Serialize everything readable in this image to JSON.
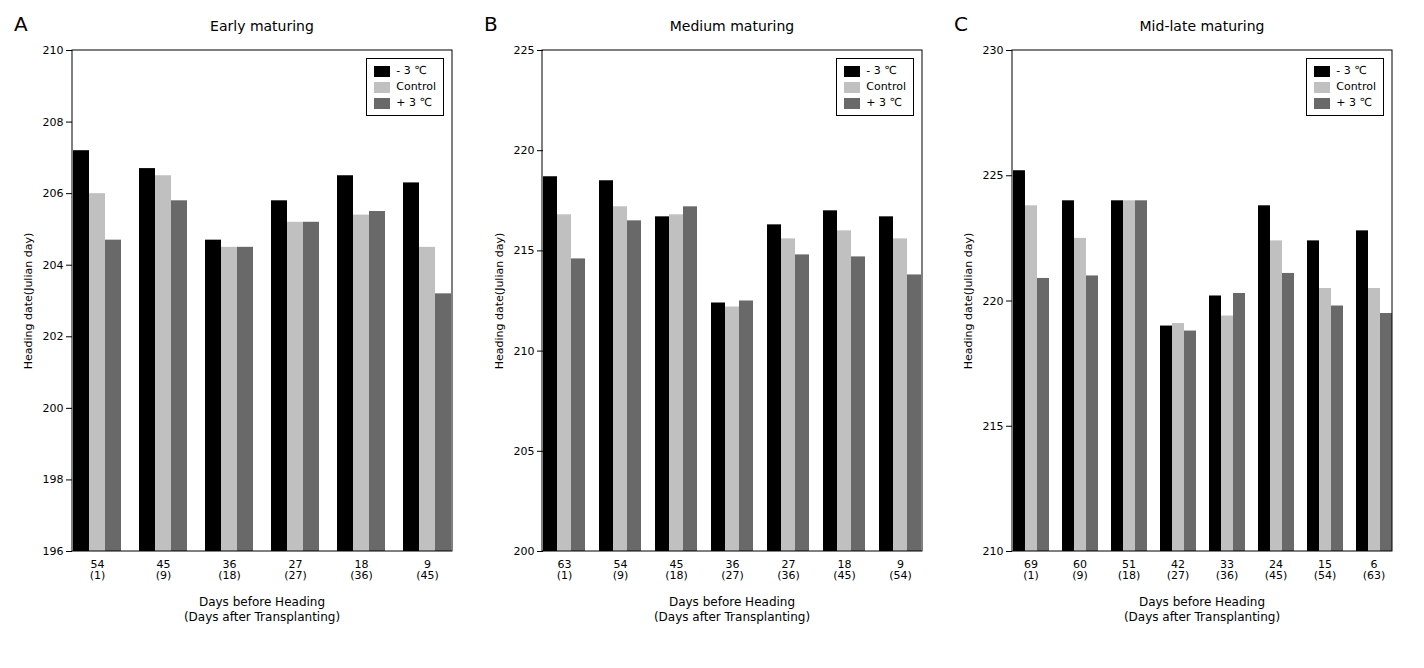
{
  "chart_data": [
    {
      "type": "bar",
      "title": "Early maturing",
      "annotations": [
        "A"
      ],
      "x_label": "Days before Heading\n(Days after Transplanting)",
      "y_label": "Heading date(Julian day)",
      "categories": [
        "54\n(1)",
        "45\n(9)",
        "36\n(18)",
        "27\n(27)",
        "18\n(36)",
        "9\n(45)"
      ],
      "series": [
        {
          "name": "- 3 ℃",
          "color": "#000000",
          "values": [
            207.2,
            206.7,
            204.7,
            205.8,
            206.5,
            206.3
          ]
        },
        {
          "name": "Control",
          "color": "#c0c0c0",
          "values": [
            206.0,
            206.5,
            204.5,
            205.2,
            205.4,
            204.5
          ]
        },
        {
          "name": "+ 3 ℃",
          "color": "#696969",
          "values": [
            204.7,
            205.8,
            204.5,
            205.2,
            205.5,
            203.2
          ]
        }
      ],
      "ylim": [
        196,
        210
      ],
      "yticks": [
        196,
        198,
        200,
        202,
        204,
        206,
        208,
        210
      ],
      "legend": "upper right"
    },
    {
      "type": "bar",
      "title": "Medium maturing",
      "annotations": [
        "B"
      ],
      "x_label": "Days before Heading\n(Days after Transplanting)",
      "y_label": "Heading date(Julian day)",
      "categories": [
        "63\n(1)",
        "54\n(9)",
        "45\n(18)",
        "36\n(27)",
        "27\n(36)",
        "18\n(45)",
        "9\n(54)"
      ],
      "series": [
        {
          "name": "- 3 ℃",
          "color": "#000000",
          "values": [
            218.7,
            218.5,
            216.7,
            212.4,
            216.3,
            217.0,
            216.7
          ]
        },
        {
          "name": "Control",
          "color": "#c0c0c0",
          "values": [
            216.8,
            217.2,
            216.8,
            212.2,
            215.6,
            216.0,
            215.6
          ]
        },
        {
          "name": "+ 3 ℃",
          "color": "#696969",
          "values": [
            214.6,
            216.5,
            217.2,
            212.5,
            214.8,
            214.7,
            213.8
          ]
        }
      ],
      "ylim": [
        200,
        225
      ],
      "yticks": [
        200,
        205,
        210,
        215,
        220,
        225
      ],
      "legend": "upper right"
    },
    {
      "type": "bar",
      "title": "Mid-late maturing",
      "annotations": [
        "C"
      ],
      "x_label": "Days before Heading\n(Days after Transplanting)",
      "y_label": "Heading date(Julian day)",
      "categories": [
        "69\n(1)",
        "60\n(9)",
        "51\n(18)",
        "42\n(27)",
        "33\n(36)",
        "24\n(45)",
        "15\n(54)",
        "6\n(63)"
      ],
      "series": [
        {
          "name": "- 3 ℃",
          "color": "#000000",
          "values": [
            225.2,
            224.0,
            224.0,
            219.0,
            220.2,
            223.8,
            222.4,
            222.8
          ]
        },
        {
          "name": "Control",
          "color": "#c0c0c0",
          "values": [
            223.8,
            222.5,
            224.0,
            219.1,
            219.4,
            222.4,
            220.5,
            220.5
          ]
        },
        {
          "name": "+ 3 ℃",
          "color": "#696969",
          "values": [
            220.9,
            221.0,
            224.0,
            218.8,
            220.3,
            221.1,
            219.8,
            219.5
          ]
        }
      ],
      "ylim": [
        210,
        230
      ],
      "yticks": [
        210,
        215,
        220,
        225,
        230
      ],
      "legend": "upper right"
    }
  ]
}
